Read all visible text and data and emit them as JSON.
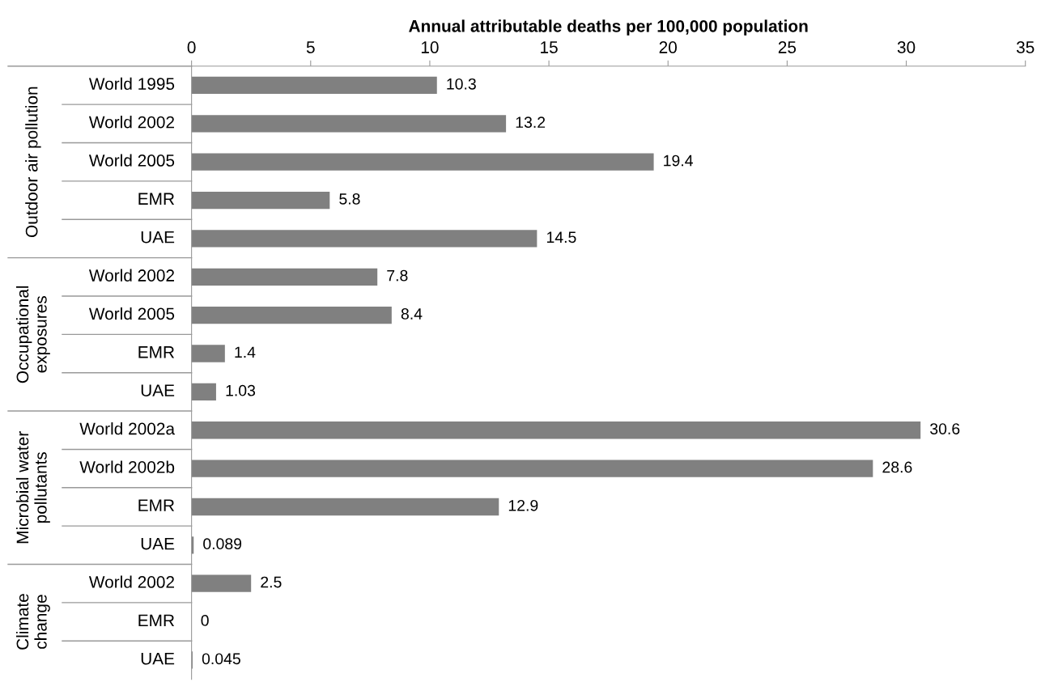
{
  "chart_data": {
    "type": "bar",
    "orientation": "horizontal",
    "xlabel": "Annual attributable deaths per 100,000 population",
    "categories": [
      "World 1995",
      "World 2002",
      "World 2005",
      "EMR",
      "UAE",
      "World 2002",
      "World 2005",
      "EMR",
      "UAE",
      "World 2002a",
      "World 2002b",
      "EMR",
      "UAE",
      "World 2002",
      "EMR",
      "UAE"
    ],
    "values": [
      10.3,
      13.2,
      19.4,
      5.8,
      14.5,
      7.8,
      8.4,
      1.4,
      1.03,
      30.6,
      28.6,
      12.9,
      0.089,
      2.5,
      0,
      0.045
    ],
    "color": "#808080",
    "xlim": [
      0,
      35
    ],
    "xticks": [
      0,
      5,
      10,
      15,
      20,
      25,
      30,
      35
    ],
    "data_labels": true,
    "grid": false,
    "annotations": [
      "Outdoor air pollution",
      "Occupational\nexposures",
      "Microbial water\npollutants",
      "Climate\nchange"
    ]
  }
}
